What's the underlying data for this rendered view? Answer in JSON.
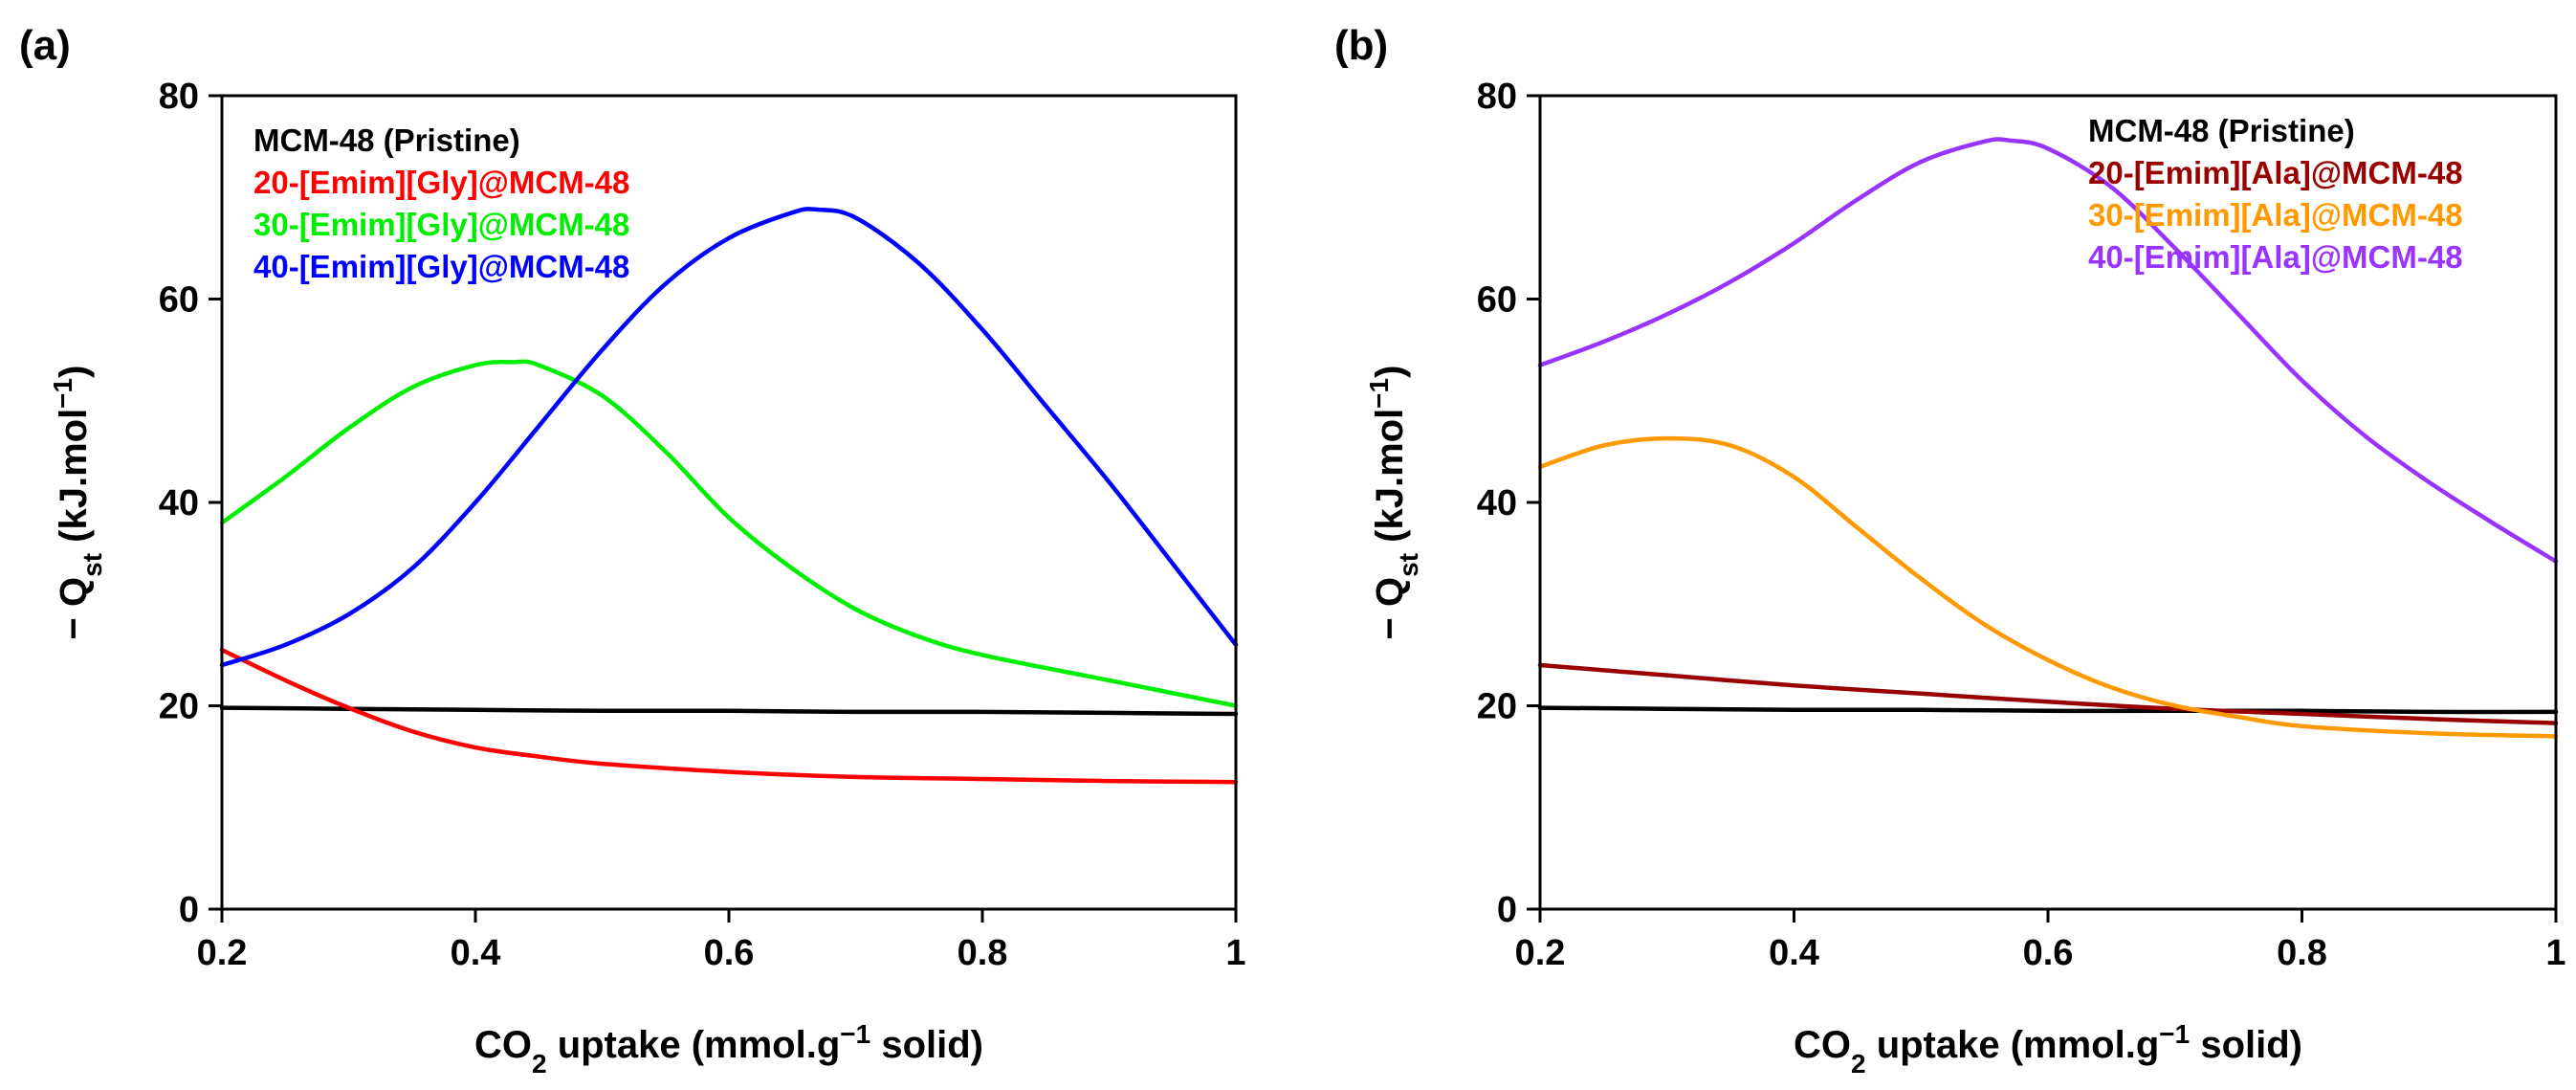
{
  "chart_data": [
    {
      "type": "line",
      "panel_label": "(a)",
      "xlabel": {
        "prefix": "CO",
        "sub": "2",
        "mid": " uptake (mmol.g",
        "sup": "−1",
        "suffix": " solid)"
      },
      "ylabel": {
        "prefix": "− Q",
        "sub": "st",
        "mid": " (kJ.mol",
        "sup": "−1",
        "suffix": ")"
      },
      "xlim": [
        0.2,
        1.0
      ],
      "ylim": [
        0,
        80
      ],
      "xticks": [
        0.2,
        0.4,
        0.6,
        0.8,
        1.0
      ],
      "xtick_labels": [
        "0.2",
        "0.4",
        "0.6",
        "0.8",
        "1"
      ],
      "yticks": [
        0,
        20,
        40,
        60,
        80
      ],
      "ytick_labels": [
        "0",
        "20",
        "40",
        "60",
        "80"
      ],
      "legend_position": "top-left",
      "series": [
        {
          "name": "MCM-48 (Pristine)",
          "color": "#000000",
          "x": [
            0.2,
            0.3,
            0.4,
            0.5,
            0.6,
            0.7,
            0.8,
            0.9,
            1.0
          ],
          "y": [
            19.8,
            19.7,
            19.6,
            19.5,
            19.5,
            19.4,
            19.4,
            19.3,
            19.2
          ]
        },
        {
          "name": "20-[Emim][Gly]@MCM-48",
          "color": "#ff0000",
          "x": [
            0.2,
            0.25,
            0.3,
            0.35,
            0.4,
            0.45,
            0.5,
            0.6,
            0.7,
            0.8,
            0.9,
            1.0
          ],
          "y": [
            25.5,
            22.5,
            19.8,
            17.5,
            15.9,
            15.0,
            14.3,
            13.5,
            13.0,
            12.8,
            12.6,
            12.5
          ]
        },
        {
          "name": "30-[Emim][Gly]@MCM-48",
          "color": "#00ee00",
          "x": [
            0.2,
            0.25,
            0.3,
            0.35,
            0.4,
            0.43,
            0.45,
            0.5,
            0.55,
            0.6,
            0.65,
            0.7,
            0.75,
            0.8,
            0.9,
            1.0
          ],
          "y": [
            38.0,
            42.5,
            47.3,
            51.3,
            53.5,
            53.8,
            53.5,
            50.5,
            45.0,
            38.5,
            33.5,
            29.5,
            26.8,
            25.0,
            22.5,
            20.0
          ]
        },
        {
          "name": "40-[Emim][Gly]@MCM-48",
          "color": "#0000ff",
          "x": [
            0.2,
            0.25,
            0.3,
            0.35,
            0.4,
            0.45,
            0.5,
            0.55,
            0.6,
            0.65,
            0.67,
            0.7,
            0.75,
            0.8,
            0.85,
            0.9,
            0.95,
            1.0
          ],
          "y": [
            24.0,
            26.0,
            29.0,
            33.5,
            40.0,
            47.5,
            55.0,
            61.5,
            66.0,
            68.5,
            68.8,
            68.0,
            63.5,
            57.0,
            49.5,
            42.0,
            34.0,
            26.0
          ]
        }
      ]
    },
    {
      "type": "line",
      "panel_label": "(b)",
      "xlabel": {
        "prefix": "CO",
        "sub": "2",
        "mid": " uptake (mmol.g",
        "sup": "−1",
        "suffix": " solid)"
      },
      "ylabel": {
        "prefix": "− Q",
        "sub": "st",
        "mid": " (kJ.mol",
        "sup": "−1",
        "suffix": ")"
      },
      "xlim": [
        0.2,
        1.0
      ],
      "ylim": [
        0,
        80
      ],
      "xticks": [
        0.2,
        0.4,
        0.6,
        0.8,
        1.0
      ],
      "xtick_labels": [
        "0.2",
        "0.4",
        "0.6",
        "0.8",
        "1"
      ],
      "yticks": [
        0,
        20,
        40,
        60,
        80
      ],
      "ytick_labels": [
        "0",
        "20",
        "40",
        "60",
        "80"
      ],
      "legend_position": "top-right",
      "series": [
        {
          "name": "MCM-48 (Pristine)",
          "color": "#000000",
          "x": [
            0.2,
            0.3,
            0.4,
            0.5,
            0.6,
            0.7,
            0.8,
            0.9,
            1.0
          ],
          "y": [
            19.8,
            19.7,
            19.6,
            19.6,
            19.5,
            19.5,
            19.5,
            19.4,
            19.4
          ]
        },
        {
          "name": "20-[Emim][Ala]@MCM-48",
          "color": "#990000",
          "x": [
            0.2,
            0.3,
            0.4,
            0.5,
            0.6,
            0.7,
            0.8,
            0.9,
            1.0
          ],
          "y": [
            24.0,
            23.0,
            22.0,
            21.2,
            20.4,
            19.7,
            19.2,
            18.7,
            18.3
          ]
        },
        {
          "name": "30-[Emim][Ala]@MCM-48",
          "color": "#ff9900",
          "x": [
            0.2,
            0.25,
            0.3,
            0.35,
            0.4,
            0.45,
            0.5,
            0.55,
            0.6,
            0.65,
            0.7,
            0.75,
            0.8,
            0.9,
            1.0
          ],
          "y": [
            43.5,
            45.6,
            46.3,
            45.6,
            42.5,
            37.5,
            32.5,
            28.0,
            24.5,
            21.8,
            20.0,
            18.9,
            18.0,
            17.3,
            17.0
          ]
        },
        {
          "name": "40-[Emim][Ala]@MCM-48",
          "color": "#9933ff",
          "x": [
            0.2,
            0.25,
            0.3,
            0.35,
            0.4,
            0.45,
            0.5,
            0.55,
            0.57,
            0.6,
            0.65,
            0.7,
            0.75,
            0.8,
            0.85,
            0.9,
            0.95,
            1.0
          ],
          "y": [
            53.5,
            55.8,
            58.5,
            61.7,
            65.5,
            69.8,
            73.5,
            75.5,
            75.6,
            74.8,
            71.0,
            65.0,
            58.5,
            52.0,
            46.5,
            42.0,
            38.0,
            34.2
          ]
        }
      ]
    }
  ]
}
